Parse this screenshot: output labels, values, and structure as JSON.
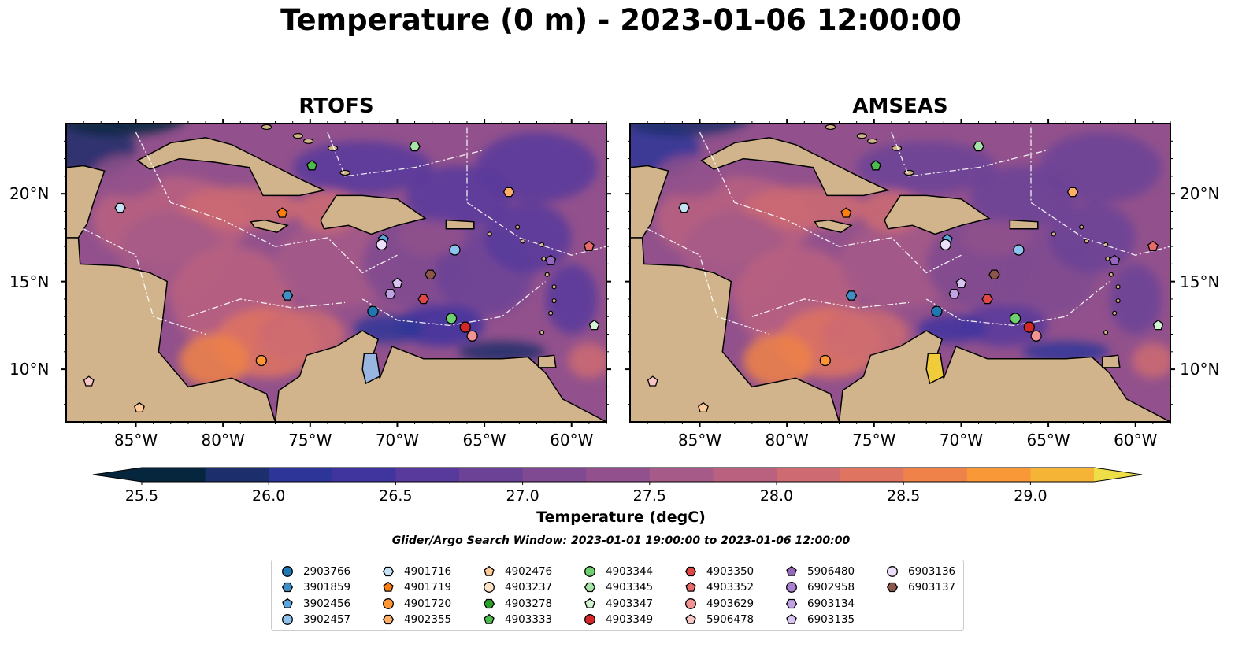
{
  "title": "Temperature (0 m) - 2023-01-06 12:00:00",
  "panels": [
    {
      "title": "RTOFS"
    },
    {
      "title": "AMSEAS"
    }
  ],
  "axes": {
    "lon_ticks": [
      "85°W",
      "80°W",
      "75°W",
      "70°W",
      "65°W",
      "60°W"
    ],
    "lat_ticks": [
      "20°N",
      "15°N",
      "10°N"
    ],
    "lon_range": [
      -89,
      -58
    ],
    "lat_range": [
      7,
      24
    ]
  },
  "colorbar": {
    "label": "Temperature (degC)",
    "ticks": [
      "25.5",
      "26.0",
      "26.5",
      "27.0",
      "27.5",
      "28.0",
      "28.5",
      "29.0"
    ],
    "range": [
      25.5,
      29.25
    ],
    "extend": "both",
    "colors": [
      "#06263d",
      "#1c2e6b",
      "#2d3598",
      "#40349f",
      "#58399c",
      "#6b4296",
      "#7f4a91",
      "#92518c",
      "#a65a87",
      "#ba6180",
      "#ce6b72",
      "#df7460",
      "#ef8249",
      "#f89837",
      "#f5b436",
      "#eede47"
    ]
  },
  "subtitle": "Glider/Argo Search Window: 2023-01-01 19:00:00 to 2023-01-06 12:00:00",
  "colors": {
    "land": "#d2b48c",
    "ocean_mid": "#8a4c8e",
    "ocean_warm": "#c0687a",
    "cold": "#2a2f7c"
  },
  "legend": [
    {
      "id": "2903766",
      "marker": "circle",
      "color": "#1f77b4"
    },
    {
      "id": "3901859",
      "marker": "hexagon",
      "color": "#3f8fc7"
    },
    {
      "id": "3902456",
      "marker": "pentagon",
      "color": "#5aa6de"
    },
    {
      "id": "3902457",
      "marker": "circle",
      "color": "#8fc3ef"
    },
    {
      "id": "4901716",
      "marker": "hexagon",
      "color": "#c6e2f7"
    },
    {
      "id": "4901719",
      "marker": "pentagon",
      "color": "#ff7f0e"
    },
    {
      "id": "4901720",
      "marker": "circle",
      "color": "#ff9633"
    },
    {
      "id": "4902355",
      "marker": "hexagon",
      "color": "#ffb066"
    },
    {
      "id": "4902476",
      "marker": "pentagon",
      "color": "#ffc999"
    },
    {
      "id": "4903237",
      "marker": "circle",
      "color": "#ffe3c7"
    },
    {
      "id": "4903278",
      "marker": "hexagon",
      "color": "#2ca02c"
    },
    {
      "id": "4903333",
      "marker": "pentagon",
      "color": "#4cbc4c"
    },
    {
      "id": "4903344",
      "marker": "circle",
      "color": "#6fcf6f"
    },
    {
      "id": "4903345",
      "marker": "hexagon",
      "color": "#a6e3a6"
    },
    {
      "id": "4903347",
      "marker": "pentagon",
      "color": "#d3f3d3"
    },
    {
      "id": "4903349",
      "marker": "circle",
      "color": "#d62728"
    },
    {
      "id": "4903350",
      "marker": "hexagon",
      "color": "#e04848"
    },
    {
      "id": "4903352",
      "marker": "pentagon",
      "color": "#ea6a6a"
    },
    {
      "id": "4903629",
      "marker": "circle",
      "color": "#f29393"
    },
    {
      "id": "5906478",
      "marker": "pentagon",
      "color": "#f9c6c6"
    },
    {
      "id": "5906480",
      "marker": "pentagon",
      "color": "#9467bd"
    },
    {
      "id": "6902958",
      "marker": "circle",
      "color": "#a97fd0"
    },
    {
      "id": "6903134",
      "marker": "hexagon",
      "color": "#c1a2e2"
    },
    {
      "id": "6903135",
      "marker": "pentagon",
      "color": "#d8c4f0"
    },
    {
      "id": "6903136",
      "marker": "circle",
      "color": "#ecdff9"
    },
    {
      "id": "6903137",
      "marker": "hexagon",
      "color": "#8c564b"
    }
  ],
  "floats": [
    {
      "id": "4901716",
      "lon": -85.9,
      "lat": 19.2
    },
    {
      "id": "4901719",
      "lon": -76.6,
      "lat": 18.9
    },
    {
      "id": "4903333",
      "lon": -74.9,
      "lat": 21.6
    },
    {
      "id": "4903345",
      "lon": -69.0,
      "lat": 22.7
    },
    {
      "id": "4902355",
      "lon": -63.6,
      "lat": 20.1
    },
    {
      "id": "3902456",
      "lon": -70.8,
      "lat": 17.4
    },
    {
      "id": "6903136",
      "lon": -70.9,
      "lat": 17.1
    },
    {
      "id": "3902457",
      "lon": -66.7,
      "lat": 16.8
    },
    {
      "id": "4903352",
      "lon": -59.0,
      "lat": 17.0
    },
    {
      "id": "5906480",
      "lon": -61.2,
      "lat": 16.2
    },
    {
      "id": "6903137",
      "lon": -68.1,
      "lat": 15.4
    },
    {
      "id": "6903135",
      "lon": -70.0,
      "lat": 14.9
    },
    {
      "id": "6903134",
      "lon": -70.4,
      "lat": 14.3
    },
    {
      "id": "3901859",
      "lon": -76.3,
      "lat": 14.2
    },
    {
      "id": "4903350",
      "lon": -68.5,
      "lat": 14.0
    },
    {
      "id": "2903766",
      "lon": -71.4,
      "lat": 13.3
    },
    {
      "id": "4903344",
      "lon": -66.9,
      "lat": 12.9
    },
    {
      "id": "4903349",
      "lon": -66.1,
      "lat": 12.4
    },
    {
      "id": "4903629",
      "lon": -65.7,
      "lat": 11.9
    },
    {
      "id": "4903347",
      "lon": -58.7,
      "lat": 12.5
    },
    {
      "id": "4901720",
      "lon": -77.8,
      "lat": 10.5
    },
    {
      "id": "5906478",
      "lon": -87.7,
      "lat": 9.3
    },
    {
      "id": "4902476",
      "lon": -84.8,
      "lat": 7.8
    }
  ]
}
